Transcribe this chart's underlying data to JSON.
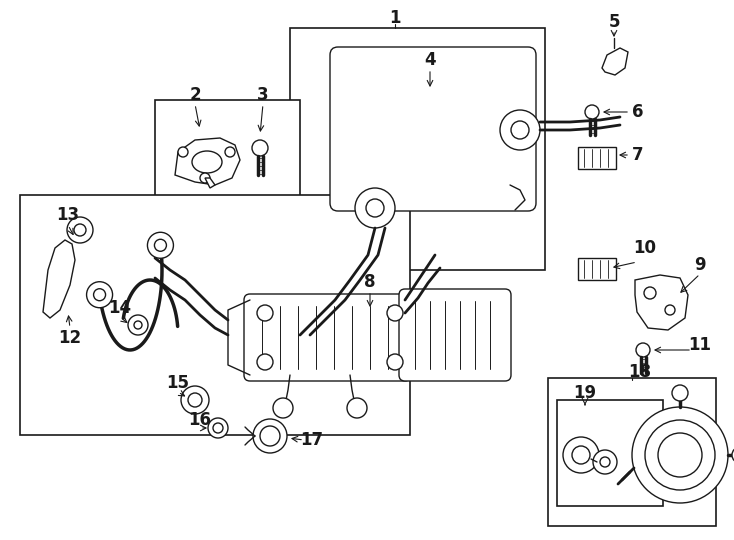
{
  "bg_color": "#ffffff",
  "line_color": "#1a1a1a",
  "figsize": [
    7.34,
    5.4
  ],
  "dpi": 100,
  "lw": 1.0
}
